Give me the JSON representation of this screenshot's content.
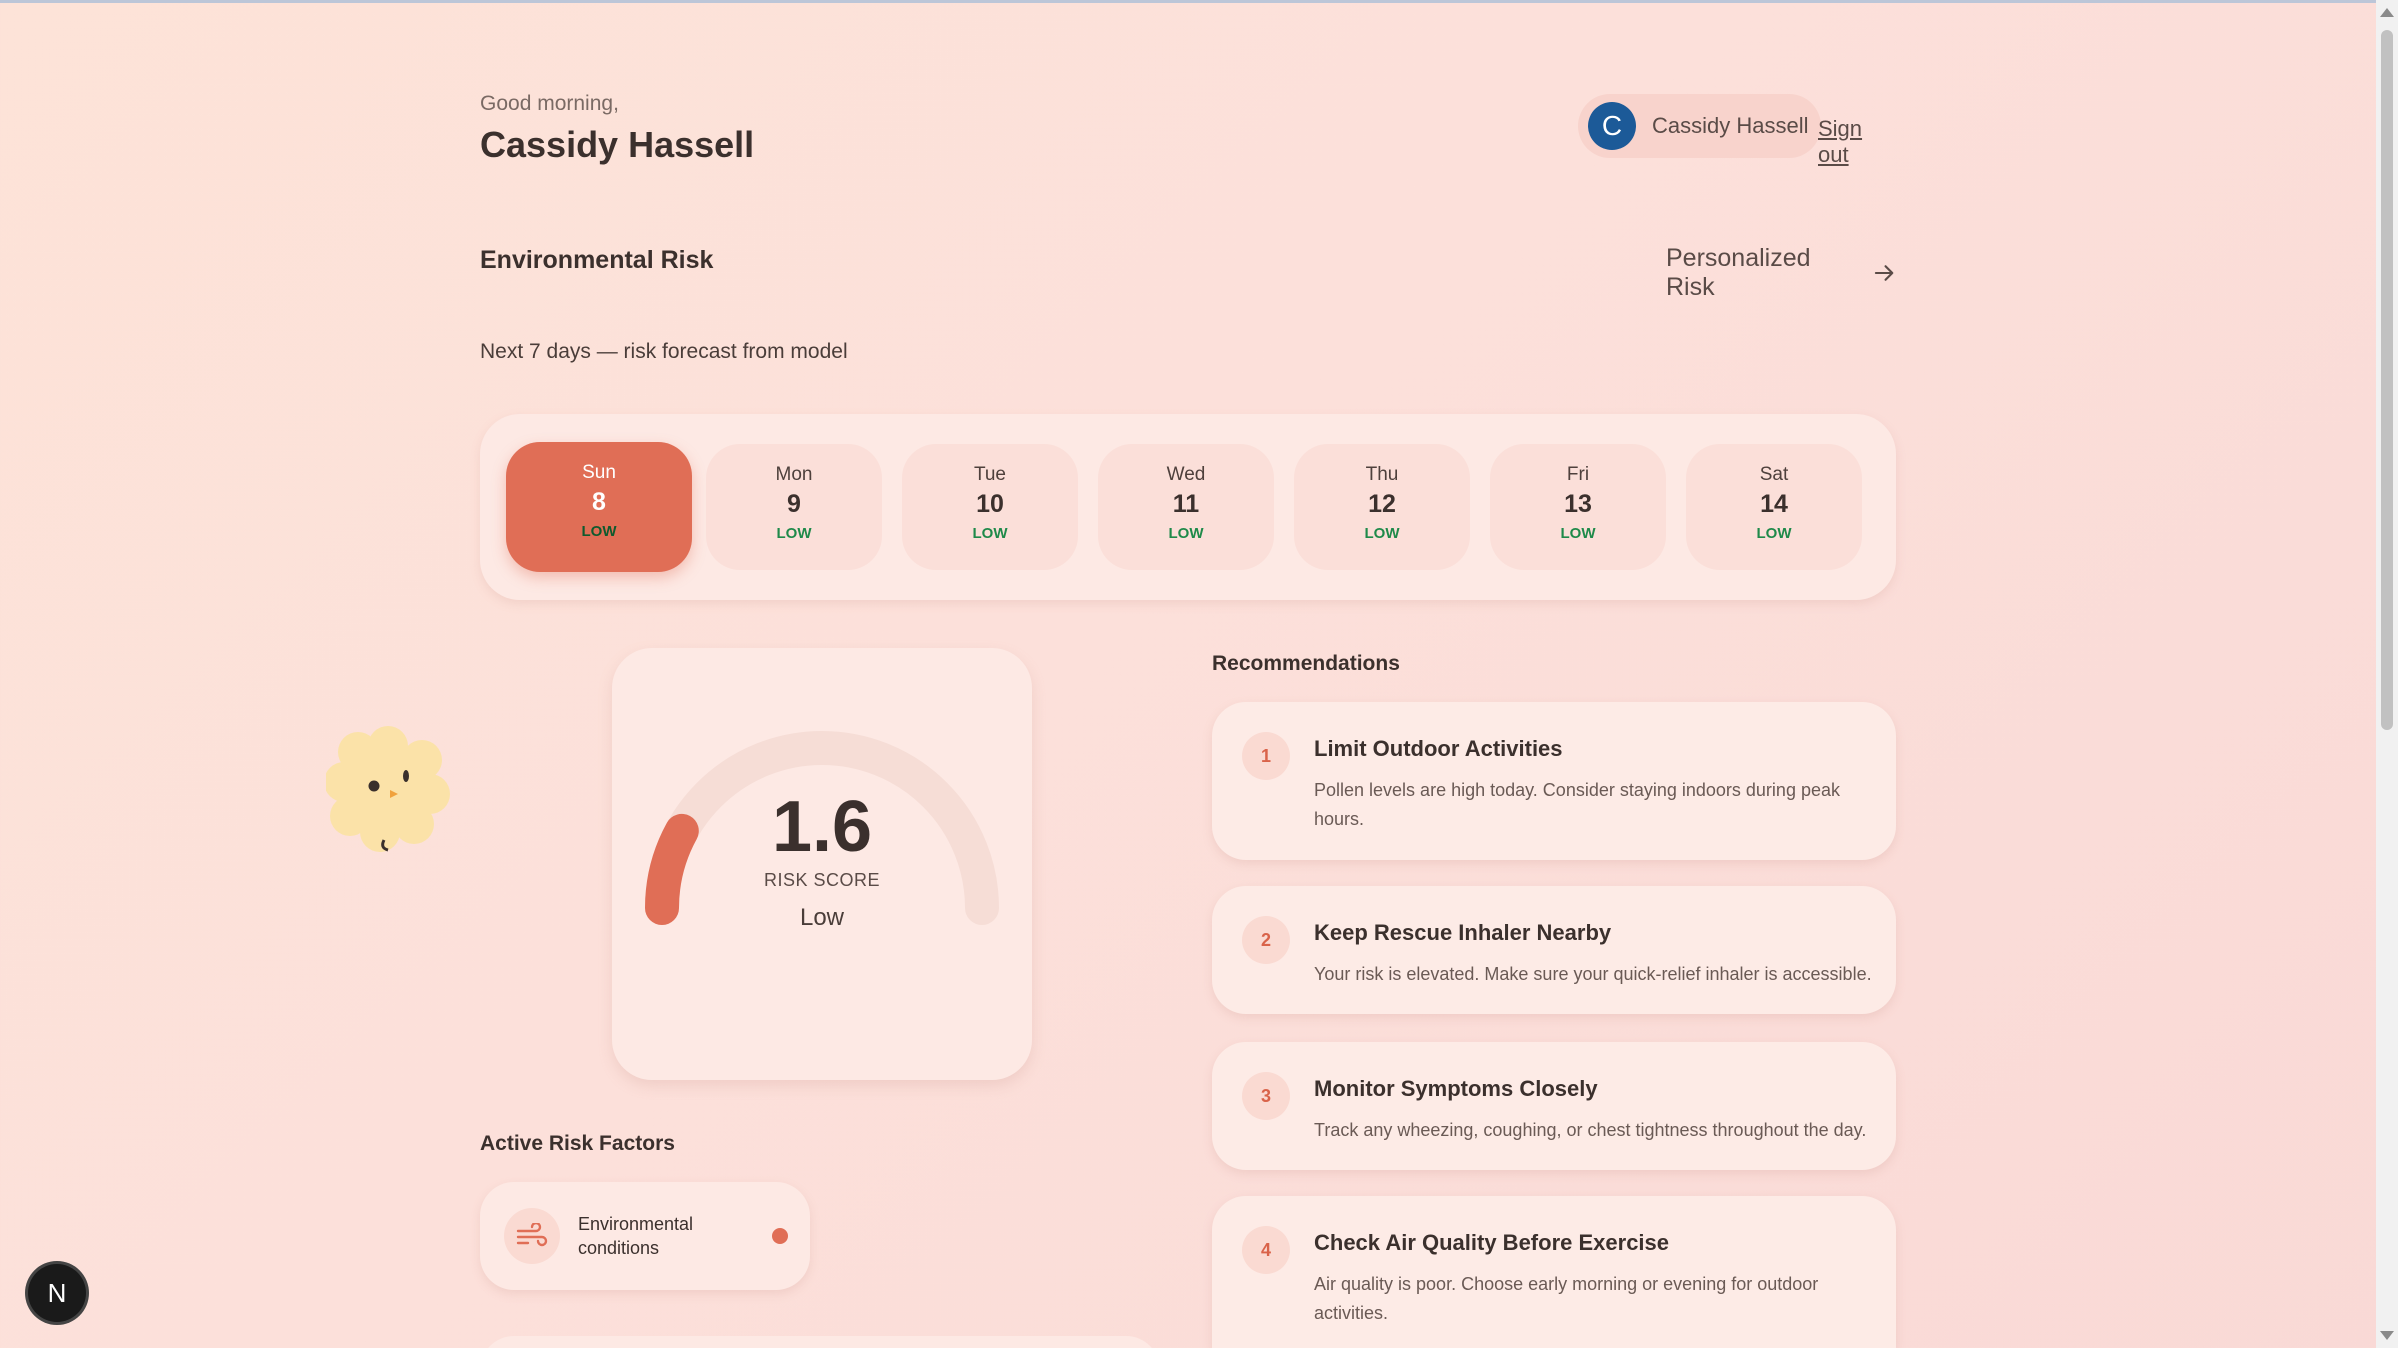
{
  "header": {
    "greeting": "Good morning,",
    "name": "Cassidy Hassell",
    "avatar_initial": "C",
    "user_label": "Cassidy Hassell",
    "sign_out": "Sign out"
  },
  "section": {
    "title": "Environmental Risk",
    "personalized_link": "Personalized Risk",
    "forecast_note": "Next 7 days — risk forecast from model"
  },
  "forecast": {
    "selected_index": 0,
    "days": [
      {
        "name": "Sun",
        "num": "8",
        "level": "LOW"
      },
      {
        "name": "Mon",
        "num": "9",
        "level": "LOW"
      },
      {
        "name": "Tue",
        "num": "10",
        "level": "LOW"
      },
      {
        "name": "Wed",
        "num": "11",
        "level": "LOW"
      },
      {
        "name": "Thu",
        "num": "12",
        "level": "LOW"
      },
      {
        "name": "Fri",
        "num": "13",
        "level": "LOW"
      },
      {
        "name": "Sat",
        "num": "14",
        "level": "LOW"
      }
    ]
  },
  "gauge": {
    "score": "1.6",
    "score_value": 1.6,
    "score_max": 10,
    "label": "RISK SCORE",
    "level": "Low"
  },
  "recommendations": {
    "title": "Recommendations",
    "items": [
      {
        "num": "1",
        "title": "Limit Outdoor Activities",
        "desc": "Pollen levels are high today. Consider staying indoors during peak hours."
      },
      {
        "num": "2",
        "title": "Keep Rescue Inhaler Nearby",
        "desc": "Your risk is elevated. Make sure your quick-relief inhaler is accessible."
      },
      {
        "num": "3",
        "title": "Monitor Symptoms Closely",
        "desc": "Track any wheezing, coughing, or chest tightness throughout the day."
      },
      {
        "num": "4",
        "title": "Check Air Quality Before Exercise",
        "desc": "Air quality is poor. Choose early morning or evening for outdoor activities."
      }
    ]
  },
  "factors": {
    "title": "Active Risk Factors",
    "items": [
      {
        "label": "Environmental conditions",
        "icon": "wind-icon"
      }
    ]
  },
  "dev_badge": "N",
  "colors": {
    "accent": "#e06e56",
    "low_level": "#1f8a4a",
    "avatar": "#1c5a98"
  }
}
